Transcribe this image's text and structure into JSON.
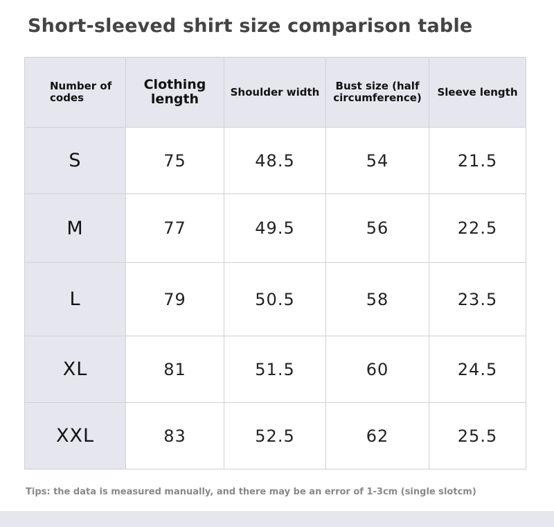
{
  "title": "Short-sleeved shirt size comparison table",
  "headers": [
    "Number of codes",
    "Clothing length",
    "Shoulder width",
    "Bust size (half circumference)",
    "Sleeve length"
  ],
  "rows": [
    [
      "S",
      "75",
      "48.5",
      "54",
      "21.5"
    ],
    [
      "M",
      "77",
      "49.5",
      "56",
      "22.5"
    ],
    [
      "L",
      "79",
      "50.5",
      "58",
      "23.5"
    ],
    [
      "XL",
      "81",
      "51.5",
      "60",
      "24.5"
    ],
    [
      "XXL",
      "83",
      "52.5",
      "62",
      "25.5"
    ]
  ],
  "tips": "Tips: the data is measured manually, and there may be an error of 1-3cm (single slotcm)"
}
